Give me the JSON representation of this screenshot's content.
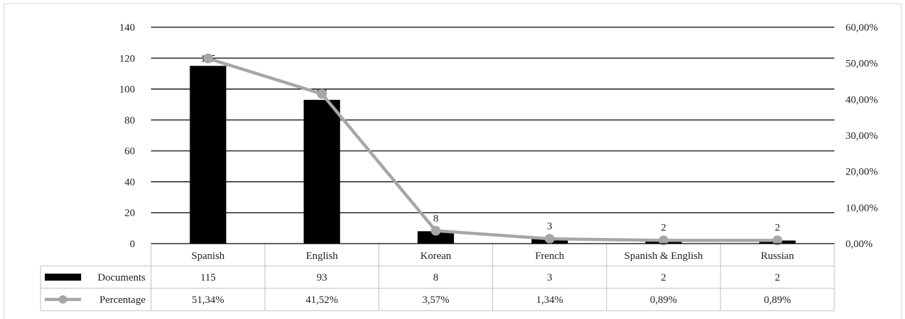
{
  "chart_data": {
    "type": "bar",
    "categories": [
      "Spanish",
      "English",
      "Korean",
      "French",
      "Spanish & English",
      "Russian"
    ],
    "series": [
      {
        "name": "Documents",
        "type": "bar",
        "axis": "left",
        "color": "#000000",
        "values": [
          115,
          93,
          8,
          3,
          2,
          2
        ],
        "display": [
          "115",
          "93",
          "8",
          "3",
          "2",
          "2"
        ]
      },
      {
        "name": "Percentage",
        "type": "line",
        "axis": "right",
        "color": "#a6a6a6",
        "values": [
          51.34,
          41.52,
          3.57,
          1.34,
          0.89,
          0.89
        ],
        "display": [
          "51,34%",
          "41,52%",
          "3,57%",
          "1,34%",
          "0,89%",
          "0,89%"
        ]
      }
    ],
    "y_left": {
      "range": [
        0,
        140
      ],
      "ticks": [
        "0",
        "20",
        "40",
        "60",
        "80",
        "100",
        "120",
        "140"
      ]
    },
    "y_right": {
      "range": [
        0,
        60
      ],
      "ticks": [
        "0,00%",
        "10,00%",
        "20,00%",
        "30,00%",
        "40,00%",
        "50,00%",
        "60,00%"
      ]
    },
    "grid": true,
    "legend": "data-table",
    "title": "",
    "xlabel": "",
    "ylabel": ""
  }
}
